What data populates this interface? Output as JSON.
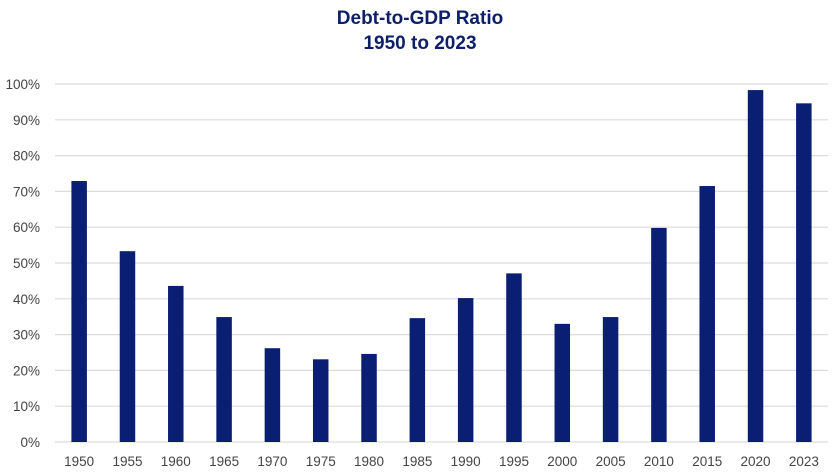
{
  "chart_data": {
    "type": "bar",
    "title": "Debt-to-GDP Ratio",
    "subtitle": "1950 to 2023",
    "categories": [
      "1950",
      "1955",
      "1960",
      "1965",
      "1970",
      "1975",
      "1980",
      "1985",
      "1990",
      "1995",
      "2000",
      "2005",
      "2010",
      "2015",
      "2020",
      "2023"
    ],
    "values": [
      72.9,
      53.3,
      43.6,
      34.9,
      26.2,
      23.1,
      24.6,
      34.6,
      40.2,
      47.1,
      33.0,
      34.9,
      59.8,
      71.5,
      98.3,
      94.6
    ],
    "ylim": [
      0,
      100
    ],
    "yticks": [
      "0%",
      "10%",
      "20%",
      "30%",
      "40%",
      "50%",
      "60%",
      "70%",
      "80%",
      "90%",
      "100%"
    ],
    "xlabel": "",
    "ylabel": "",
    "grid": true,
    "bar_color": "#0a1f73",
    "grid_color": "#dcdcdc"
  }
}
